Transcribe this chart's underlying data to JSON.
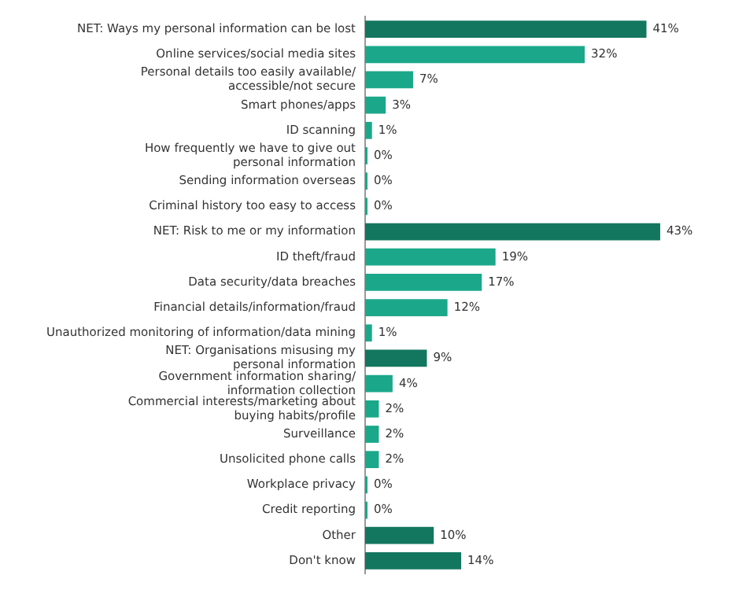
{
  "chart_data": {
    "type": "bar",
    "orientation": "horizontal",
    "categories": [
      "NET: Ways my personal information can be lost",
      "Online services/social media sites",
      "Personal details too easily available/\naccessible/not secure",
      "Smart phones/apps",
      "ID scanning",
      "How frequently we have to give out\npersonal information",
      "Sending information overseas",
      "Criminal history too easy to access",
      "NET: Risk to me or my information",
      "ID theft/fraud",
      "Data security/data breaches",
      "Financial details/information/fraud",
      "Unauthorized monitoring of information/data mining",
      "NET: Organisations misusing my\npersonal information",
      "Government information sharing/\ninformation collection",
      "Commercial interests/marketing about\nbuying habits/profile",
      "Surveillance",
      "Unsolicited phone calls",
      "Workplace privacy",
      "Credit reporting",
      "Other",
      "Don't know"
    ],
    "values": [
      41,
      32,
      7,
      3,
      1,
      0,
      0,
      0,
      43,
      19,
      17,
      12,
      1,
      9,
      4,
      2,
      2,
      2,
      0,
      0,
      10,
      14
    ],
    "value_labels": [
      "41%",
      "32%",
      "7%",
      "3%",
      "1%",
      "0%",
      "0%",
      "0%",
      "43%",
      "19%",
      "17%",
      "12%",
      "1%",
      "9%",
      "4%",
      "2%",
      "2%",
      "2%",
      "0%",
      "0%",
      "10%",
      "14%"
    ],
    "colors": [
      "#13775f",
      "#1ba88a",
      "#1ba88a",
      "#1ba88a",
      "#1ba88a",
      "#1ba88a",
      "#1ba88a",
      "#1ba88a",
      "#13775f",
      "#1ba88a",
      "#1ba88a",
      "#1ba88a",
      "#1ba88a",
      "#13775f",
      "#1ba88a",
      "#1ba88a",
      "#1ba88a",
      "#1ba88a",
      "#1ba88a",
      "#1ba88a",
      "#13775f",
      "#13775f"
    ],
    "tick_labels": "y",
    "legend": false
  }
}
